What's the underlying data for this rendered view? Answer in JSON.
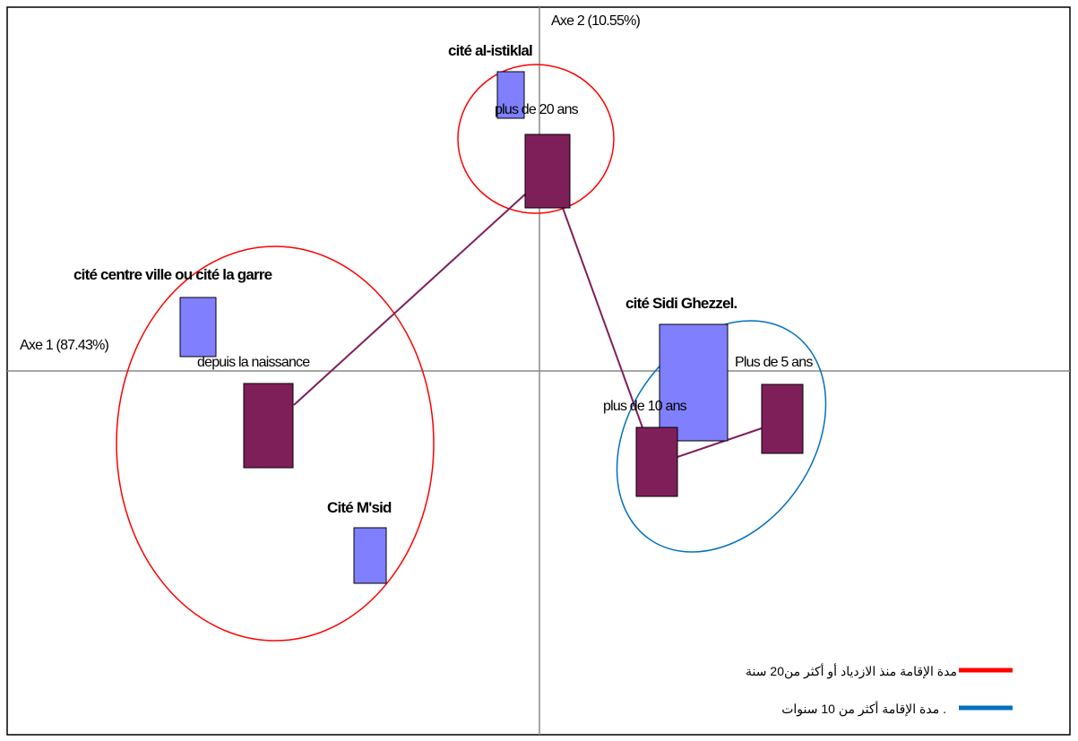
{
  "axes": {
    "x_label": "Axe 1 (87.43%)",
    "y_label": "Axe 2 (10.55%)"
  },
  "nodes": [
    {
      "label": "cité al-istiklal"
    },
    {
      "label": "plus de 20 ans"
    },
    {
      "label": "cité centre ville ou cité la garre"
    },
    {
      "label": "depuis la naissance"
    },
    {
      "label": "Cité M'sid"
    },
    {
      "label": "cité Sidi Ghezzel."
    },
    {
      "label": "Plus de 5 ans"
    },
    {
      "label": "plus de 10 ans"
    }
  ],
  "legend": [
    {
      "label": "مدة الإقامة منذ الازدياد أو أكثر من20 سنة",
      "color": "#ff0000"
    },
    {
      "label": "مدة الإقامة أكثر من 10  سنوات .",
      "color": "#0070c0"
    }
  ]
}
